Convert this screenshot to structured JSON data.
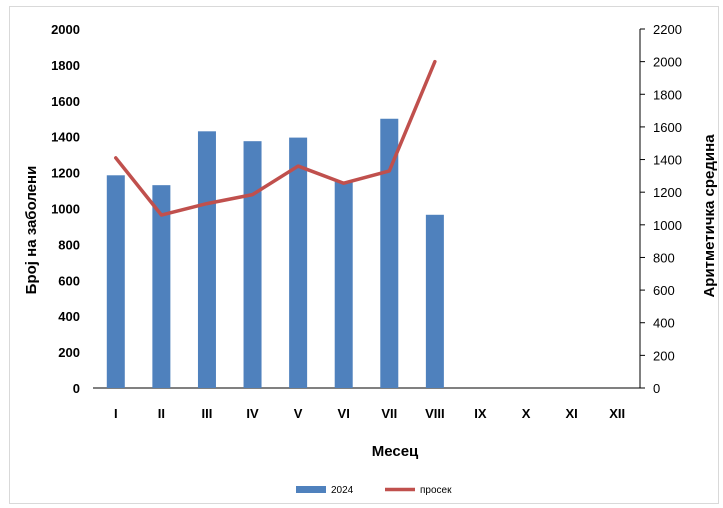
{
  "chart_data": {
    "type": "bar",
    "categories": [
      "I",
      "II",
      "III",
      "IV",
      "V",
      "VI",
      "VII",
      "VIII",
      "IX",
      "X",
      "XI",
      "XII"
    ],
    "series": [
      {
        "name": "2024",
        "type": "bar",
        "axis": "left",
        "color": "#4f81bd",
        "values": [
          1185,
          1130,
          1430,
          1375,
          1395,
          1150,
          1500,
          965,
          null,
          null,
          null,
          null
        ]
      },
      {
        "name": "просек",
        "type": "line",
        "axis": "right",
        "color": "#c0504d",
        "values": [
          1410,
          1060,
          1130,
          1185,
          1360,
          1255,
          1330,
          2000,
          null,
          null,
          null,
          null
        ]
      }
    ],
    "xlabel": "Месец",
    "ylabel": "Број на заболени",
    "y2label": "Аритметичка средина",
    "ylim": [
      0,
      2000
    ],
    "y2lim": [
      0,
      2200
    ],
    "yticks": [
      0,
      200,
      400,
      600,
      800,
      1000,
      1200,
      1400,
      1600,
      1800,
      2000
    ],
    "y2ticks": [
      0,
      200,
      400,
      600,
      800,
      1000,
      1200,
      1400,
      1600,
      1800,
      2000,
      2200
    ],
    "grid": false,
    "legend_position": "bottom"
  }
}
